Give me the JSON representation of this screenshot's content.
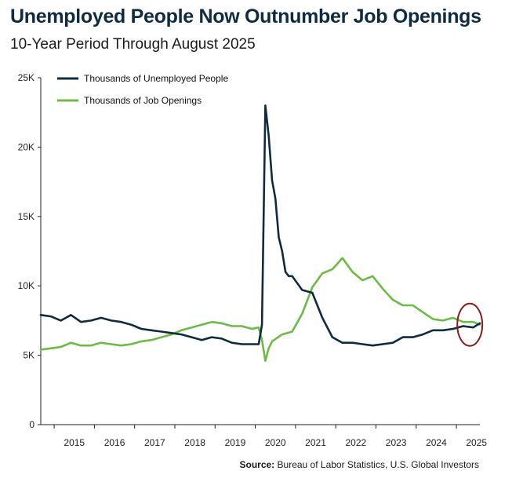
{
  "header": {
    "title": "Unemployed People Now Outnumber Job Openings",
    "subtitle": "10-Year Period Through August 2025"
  },
  "footer": {
    "source_label": "Source:",
    "source_text": "Bureau of Labor Statistics, U.S. Global Investors"
  },
  "chart_data": {
    "type": "line",
    "title": "Unemployed People Now Outnumber Job Openings",
    "subtitle": "10-Year Period Through August 2025",
    "x_range": [
      "2014-09",
      "2025-08"
    ],
    "x_tick_labels": [
      "2015",
      "2016",
      "2017",
      "2018",
      "2019",
      "2020",
      "2021",
      "2022",
      "2023",
      "2024",
      "2025"
    ],
    "ylim": [
      0,
      25000
    ],
    "y_ticks": [
      0,
      5000,
      10000,
      15000,
      20000,
      25000
    ],
    "y_tick_labels": [
      "0",
      "5K",
      "10K",
      "15K",
      "20K",
      "25K"
    ],
    "grid": false,
    "legend_position": "top-left",
    "series": [
      {
        "name": "Thousands of Unemployed People",
        "color": "#0e2b3f",
        "points": [
          [
            "2014-09",
            7900
          ],
          [
            "2014-12",
            7800
          ],
          [
            "2015-03",
            7500
          ],
          [
            "2015-06",
            7900
          ],
          [
            "2015-09",
            7400
          ],
          [
            "2015-12",
            7500
          ],
          [
            "2016-03",
            7700
          ],
          [
            "2016-06",
            7500
          ],
          [
            "2016-09",
            7400
          ],
          [
            "2016-12",
            7200
          ],
          [
            "2017-03",
            6900
          ],
          [
            "2017-06",
            6800
          ],
          [
            "2017-09",
            6700
          ],
          [
            "2017-12",
            6600
          ],
          [
            "2018-03",
            6500
          ],
          [
            "2018-06",
            6300
          ],
          [
            "2018-09",
            6100
          ],
          [
            "2018-12",
            6300
          ],
          [
            "2019-03",
            6200
          ],
          [
            "2019-06",
            5900
          ],
          [
            "2019-09",
            5800
          ],
          [
            "2019-12",
            5800
          ],
          [
            "2020-02",
            5800
          ],
          [
            "2020-03",
            7200
          ],
          [
            "2020-04",
            23000
          ],
          [
            "2020-05",
            20800
          ],
          [
            "2020-06",
            17600
          ],
          [
            "2020-07",
            16300
          ],
          [
            "2020-08",
            13500
          ],
          [
            "2020-09",
            12500
          ],
          [
            "2020-10",
            11000
          ],
          [
            "2020-11",
            10700
          ],
          [
            "2020-12",
            10700
          ],
          [
            "2021-03",
            9700
          ],
          [
            "2021-06",
            9500
          ],
          [
            "2021-09",
            7700
          ],
          [
            "2021-12",
            6300
          ],
          [
            "2022-03",
            5900
          ],
          [
            "2022-06",
            5900
          ],
          [
            "2022-09",
            5800
          ],
          [
            "2022-12",
            5700
          ],
          [
            "2023-03",
            5800
          ],
          [
            "2023-06",
            5900
          ],
          [
            "2023-09",
            6300
          ],
          [
            "2023-12",
            6300
          ],
          [
            "2024-03",
            6500
          ],
          [
            "2024-06",
            6800
          ],
          [
            "2024-09",
            6800
          ],
          [
            "2024-12",
            6900
          ],
          [
            "2025-03",
            7100
          ],
          [
            "2025-06",
            7000
          ],
          [
            "2025-08",
            7300
          ]
        ]
      },
      {
        "name": "Thousands of Job Openings",
        "color": "#6cbb45",
        "points": [
          [
            "2014-09",
            5400
          ],
          [
            "2014-12",
            5500
          ],
          [
            "2015-03",
            5600
          ],
          [
            "2015-06",
            5900
          ],
          [
            "2015-09",
            5700
          ],
          [
            "2015-12",
            5700
          ],
          [
            "2016-03",
            5900
          ],
          [
            "2016-06",
            5800
          ],
          [
            "2016-09",
            5700
          ],
          [
            "2016-12",
            5800
          ],
          [
            "2017-03",
            6000
          ],
          [
            "2017-06",
            6100
          ],
          [
            "2017-09",
            6300
          ],
          [
            "2017-12",
            6500
          ],
          [
            "2018-03",
            6800
          ],
          [
            "2018-06",
            7000
          ],
          [
            "2018-09",
            7200
          ],
          [
            "2018-12",
            7400
          ],
          [
            "2019-03",
            7300
          ],
          [
            "2019-06",
            7100
          ],
          [
            "2019-09",
            7100
          ],
          [
            "2019-12",
            6900
          ],
          [
            "2020-02",
            7000
          ],
          [
            "2020-03",
            6100
          ],
          [
            "2020-04",
            4600
          ],
          [
            "2020-05",
            5500
          ],
          [
            "2020-06",
            6000
          ],
          [
            "2020-09",
            6500
          ],
          [
            "2020-12",
            6700
          ],
          [
            "2021-03",
            8000
          ],
          [
            "2021-06",
            9900
          ],
          [
            "2021-09",
            10900
          ],
          [
            "2021-12",
            11200
          ],
          [
            "2022-03",
            12000
          ],
          [
            "2022-06",
            11000
          ],
          [
            "2022-09",
            10400
          ],
          [
            "2022-12",
            10700
          ],
          [
            "2023-03",
            9800
          ],
          [
            "2023-06",
            9000
          ],
          [
            "2023-09",
            8600
          ],
          [
            "2023-12",
            8600
          ],
          [
            "2024-03",
            8100
          ],
          [
            "2024-06",
            7600
          ],
          [
            "2024-09",
            7500
          ],
          [
            "2024-12",
            7700
          ],
          [
            "2025-03",
            7400
          ],
          [
            "2025-06",
            7400
          ],
          [
            "2025-08",
            7200
          ]
        ]
      }
    ],
    "annotations": [
      {
        "type": "ellipse-highlight",
        "color": "#8b1a1a",
        "x_center": "2025-05",
        "y_center": 7200
      }
    ]
  }
}
